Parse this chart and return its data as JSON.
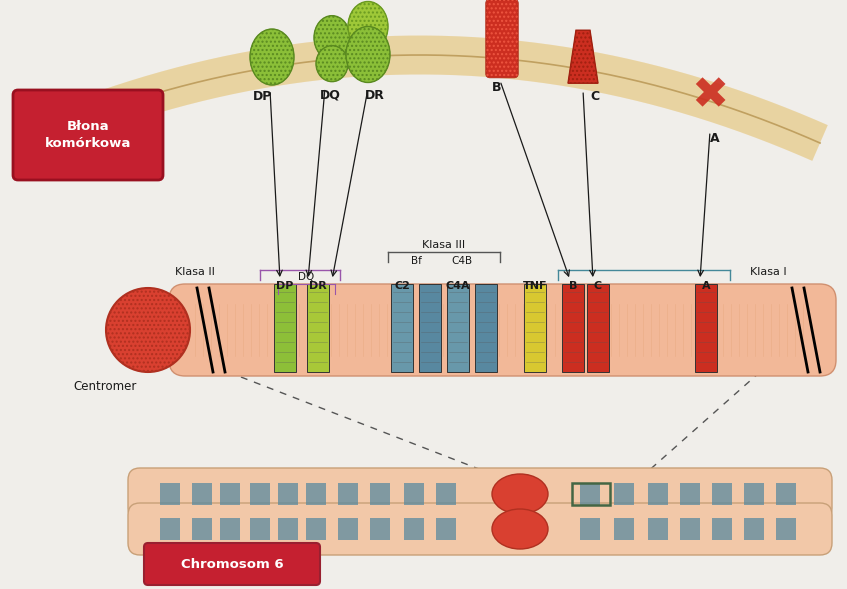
{
  "bg_color": "#f0eeea",
  "chrom_body_color": "#f2c8a8",
  "chrom_stripe_color": "#5a8a9f",
  "centromer_color": "#d94030",
  "green_dark": "#8bbf3a",
  "green_light": "#a8cc3a",
  "blue_gray": "#6a9aaa",
  "blue_teal": "#4a8899",
  "yellow_color": "#e0d040",
  "red_color": "#cc2e20",
  "arc_fill": "#f0ddb0",
  "arc_edge": "#d4b878",
  "red_label_bg": "#c52030",
  "white": "#ffffff",
  "black": "#1a1a1a",
  "title_blona": "Błona\nkomórkowa",
  "title_chromosom": "Chromosom 6",
  "label_centromer": "Centromer",
  "label_klasa2": "Klasa II",
  "label_klasa3": "Klasa III",
  "label_klasa1": "Klasa I"
}
